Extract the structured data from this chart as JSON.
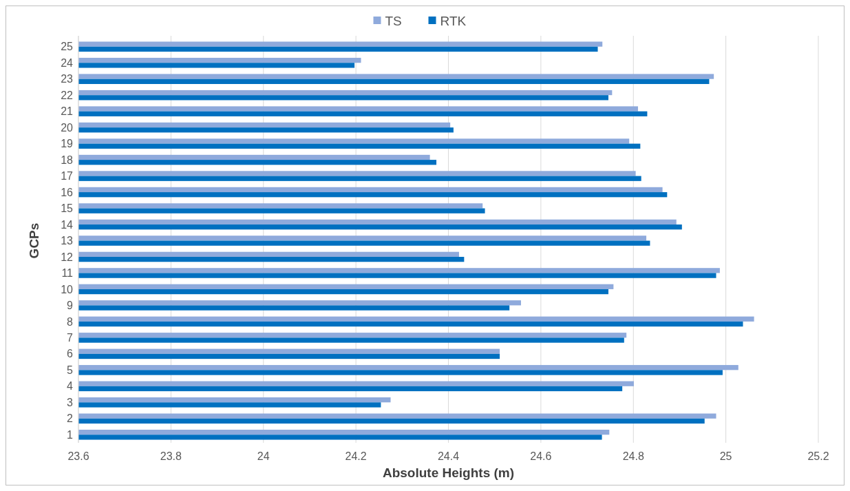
{
  "chart_data": {
    "type": "bar",
    "orientation": "horizontal",
    "xlabel": "Absolute Heights (m)",
    "ylabel": "GCPs",
    "categories": [
      "25",
      "24",
      "23",
      "22",
      "21",
      "20",
      "19",
      "18",
      "17",
      "16",
      "15",
      "14",
      "13",
      "12",
      "11",
      "10",
      "9",
      "8",
      "7",
      "6",
      "5",
      "4",
      "3",
      "2",
      "1"
    ],
    "series": [
      {
        "name": "TS",
        "color": "#8faadc",
        "values": [
          24.733,
          24.211,
          24.974,
          24.754,
          24.81,
          24.404,
          24.791,
          24.36,
          24.805,
          24.863,
          24.474,
          24.893,
          24.828,
          24.423,
          24.987,
          24.757,
          24.557,
          25.061,
          24.785,
          24.511,
          25.027,
          24.801,
          24.275,
          24.979,
          24.748
        ]
      },
      {
        "name": "RTK",
        "color": "#0070c0",
        "values": [
          24.723,
          24.197,
          24.964,
          24.746,
          24.83,
          24.411,
          24.815,
          24.374,
          24.817,
          24.873,
          24.479,
          24.905,
          24.836,
          24.434,
          24.979,
          24.746,
          24.532,
          25.037,
          24.78,
          24.511,
          24.993,
          24.776,
          24.254,
          24.954,
          24.732
        ]
      }
    ],
    "xlim": [
      23.6,
      25.2
    ],
    "xticks": [
      23.6,
      23.8,
      24,
      24.2,
      24.4,
      24.6,
      24.8,
      25,
      25.2
    ],
    "grid": "x",
    "legend": "top"
  }
}
